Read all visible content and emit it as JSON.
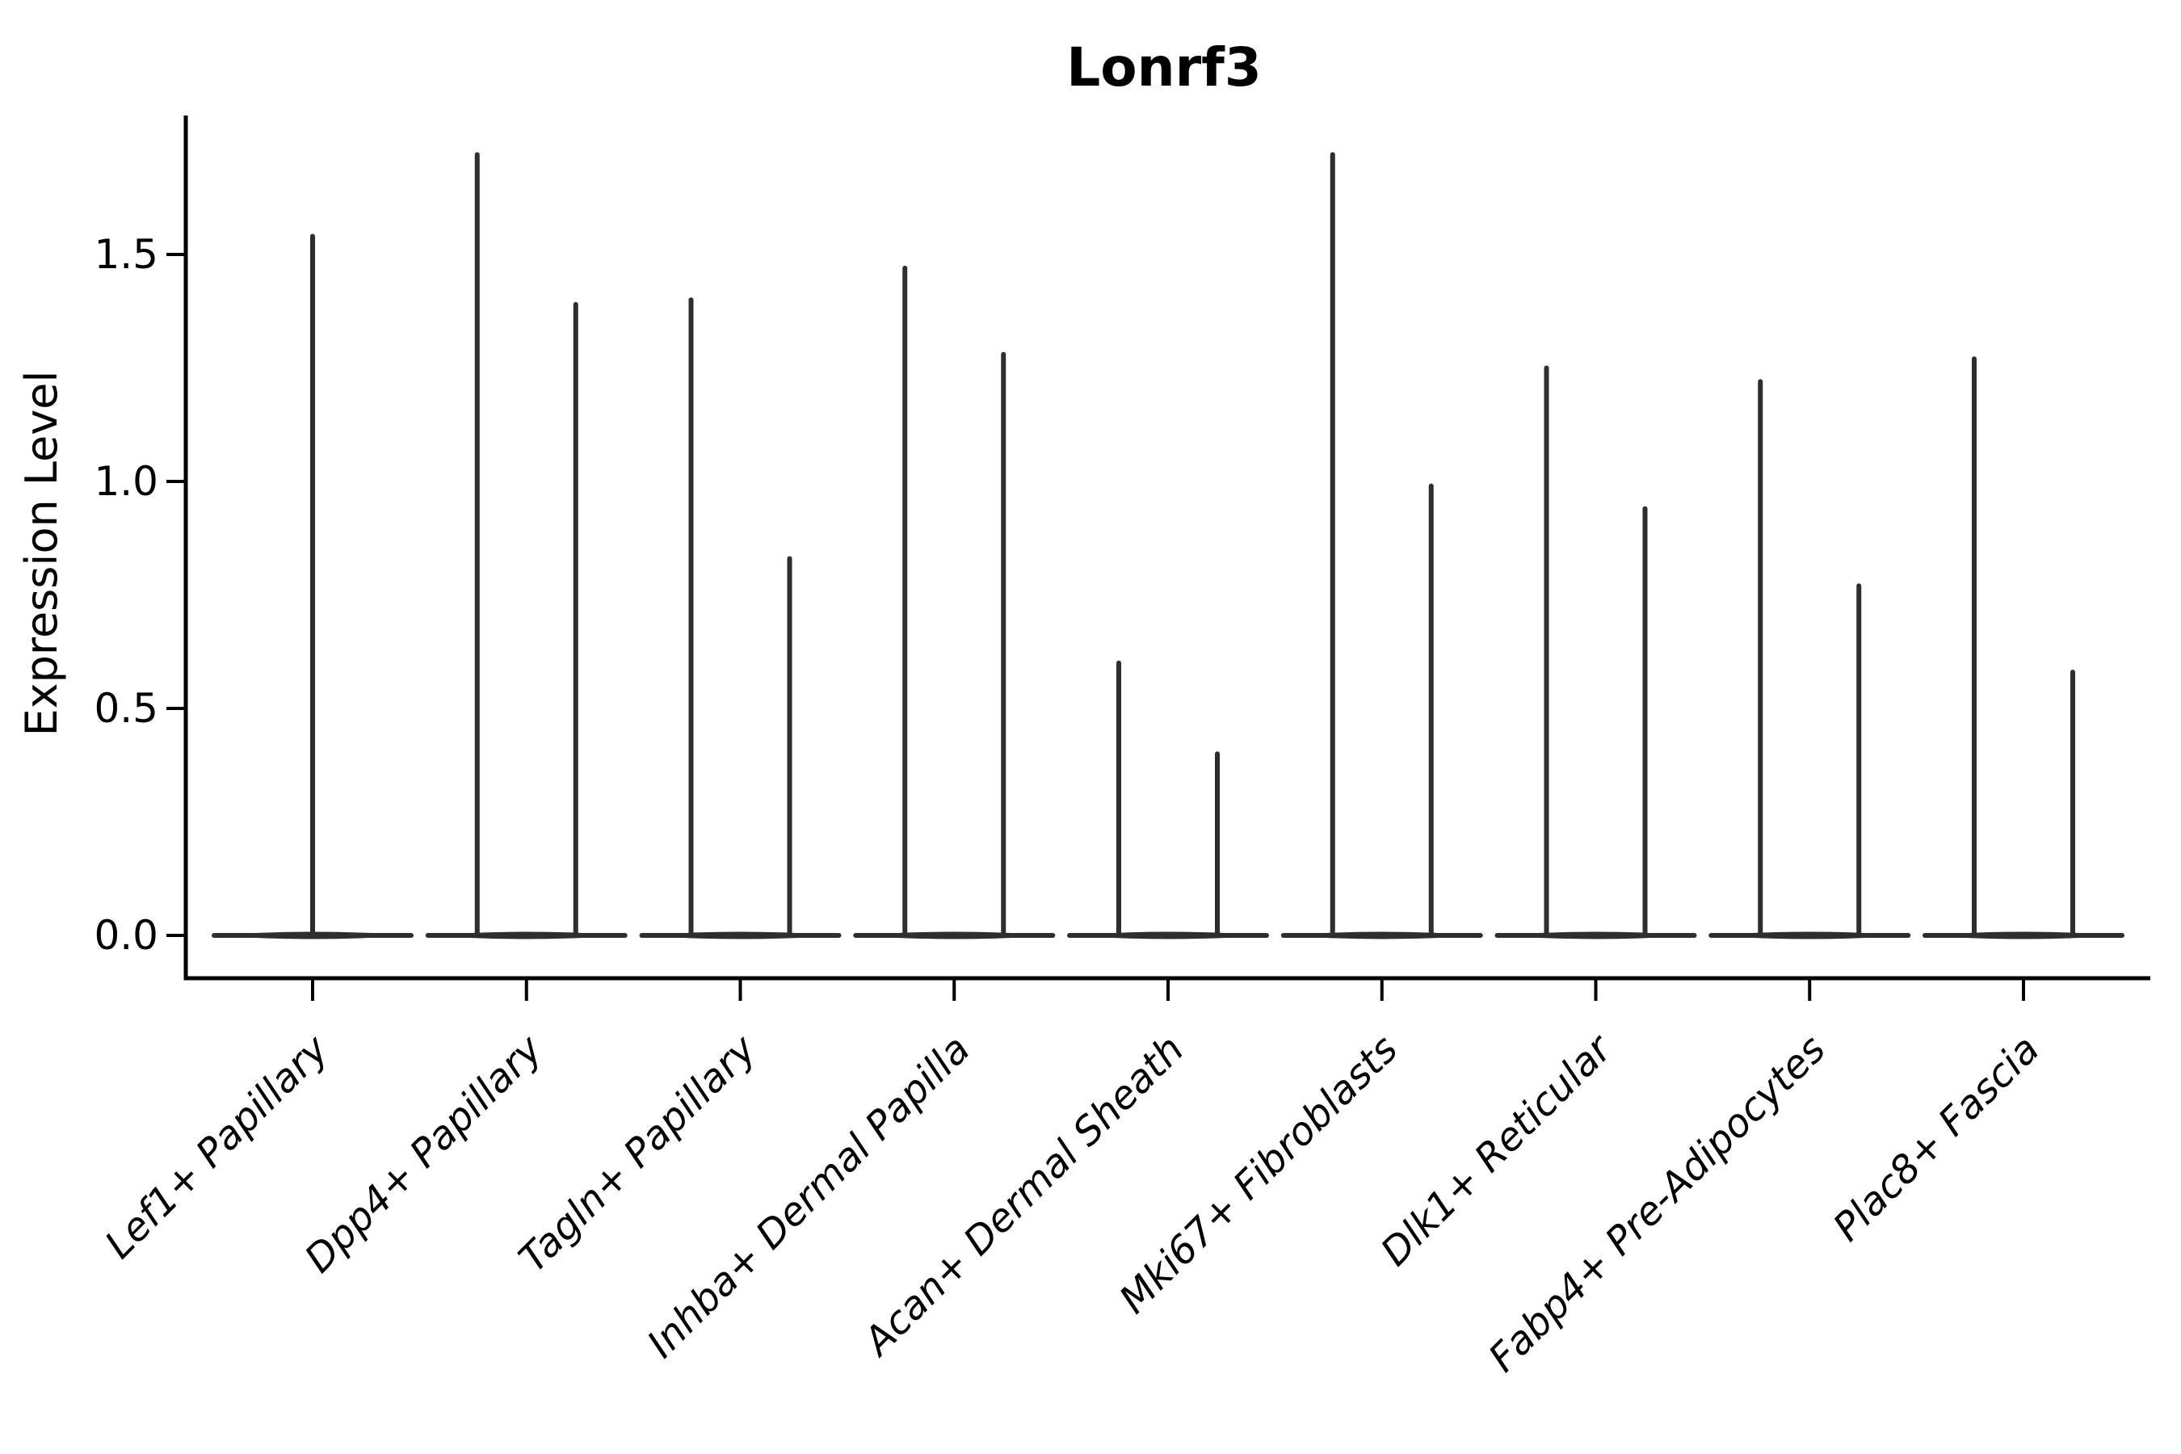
{
  "chart_data": {
    "type": "violin",
    "title": "Lonrf3",
    "xlabel": "",
    "ylabel": "Expression Level",
    "ylim": [
      -0.09,
      1.81
    ],
    "grid": false,
    "legend": "none",
    "yticks": [
      {
        "value": 0.0,
        "label": "0.0"
      },
      {
        "value": 0.5,
        "label": "0.5"
      },
      {
        "value": 1.0,
        "label": "1.0"
      },
      {
        "value": 1.5,
        "label": "1.5"
      }
    ],
    "categories": [
      "Lef1+ Papillary",
      "Dpp4+ Papillary",
      "Tagln+ Papillary",
      "Inhba+ Dermal Papilla",
      "Acan+ Dermal Sheath",
      "Mki67+ Fibroblasts",
      "Dlk1+ Reticular",
      "Fabp4+ Pre-Adipocytes",
      "Plac8+ Fascia"
    ],
    "violin_maxima_per_category": [
      [
        1.54
      ],
      [
        1.72,
        1.39
      ],
      [
        1.4,
        0.83
      ],
      [
        1.47,
        1.28
      ],
      [
        0.6,
        0.4
      ],
      [
        1.72,
        0.99
      ],
      [
        1.25,
        0.94
      ],
      [
        1.22,
        0.77
      ],
      [
        1.27,
        0.58
      ]
    ],
    "baseline_value": 0.0,
    "colors": {
      "violin": "#2e2e2e",
      "axis": "#000000",
      "background": "#ffffff"
    }
  }
}
